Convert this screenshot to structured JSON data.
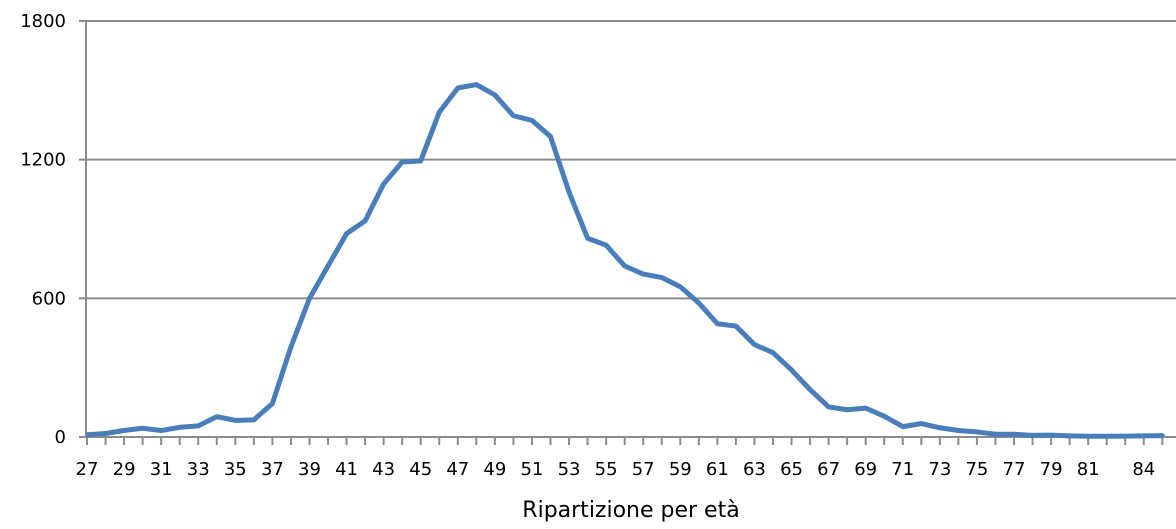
{
  "chart_data": {
    "type": "line",
    "xlabel": "Ripartizione per età",
    "ylabel": "",
    "ylim": [
      0,
      1800
    ],
    "yticks": [
      0,
      600,
      1200,
      1800
    ],
    "grid": true,
    "legend": "none",
    "categories": [
      "27",
      "28",
      "29",
      "30",
      "31",
      "32",
      "33",
      "34",
      "35",
      "36",
      "37",
      "38",
      "39",
      "40",
      "41",
      "42",
      "43",
      "44",
      "45",
      "46",
      "47",
      "48",
      "49",
      "50",
      "51",
      "52",
      "53",
      "54",
      "55",
      "56",
      "57",
      "58",
      "59",
      "60",
      "61",
      "62",
      "63",
      "64",
      "65",
      "66",
      "67",
      "68",
      "69",
      "70",
      "71",
      "72",
      "73",
      "74",
      "75",
      "76",
      "77",
      "78",
      "79",
      "80",
      "81",
      "82",
      "83",
      "84",
      "85"
    ],
    "category_labels": [
      "27",
      "29",
      "31",
      "33",
      "35",
      "37",
      "39",
      "41",
      "43",
      "45",
      "47",
      "49",
      "51",
      "53",
      "55",
      "57",
      "59",
      "61",
      "63",
      "65",
      "67",
      "69",
      "71",
      "73",
      "75",
      "77",
      "79",
      "81",
      "84"
    ],
    "series": [
      {
        "color": "#4a7ebb",
        "values": [
          10,
          15,
          28,
          38,
          28,
          42,
          48,
          88,
          72,
          74,
          145,
          390,
          600,
          740,
          880,
          935,
          1095,
          1190,
          1195,
          1405,
          1510,
          1525,
          1480,
          1390,
          1370,
          1300,
          1060,
          860,
          830,
          740,
          705,
          690,
          650,
          580,
          490,
          480,
          400,
          365,
          290,
          205,
          130,
          118,
          125,
          90,
          45,
          58,
          40,
          28,
          22,
          12,
          12,
          7,
          8,
          5,
          3,
          3,
          4,
          5,
          6
        ]
      }
    ],
    "colors": {
      "line": "#4a7ebb",
      "grid": "#8c8c8c",
      "axis": "#8c8c8c"
    }
  }
}
